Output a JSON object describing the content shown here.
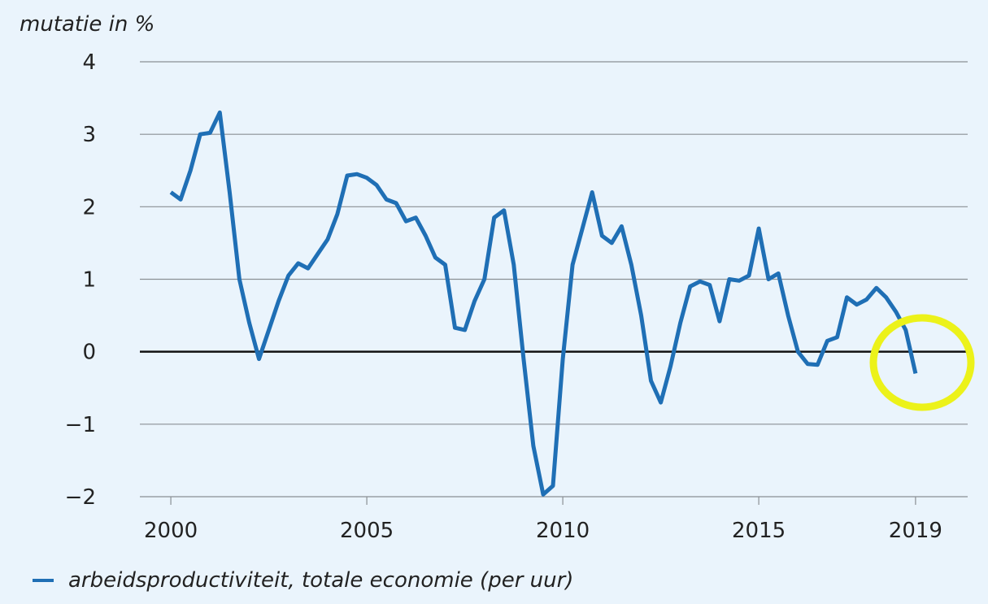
{
  "chart_data": {
    "type": "line",
    "ylabel": "mutatie in %",
    "x": [
      2000,
      2000.25,
      2000.5,
      2000.75,
      2001,
      2001.25,
      2001.5,
      2001.75,
      2002,
      2002.25,
      2002.5,
      2002.75,
      2003,
      2003.25,
      2003.5,
      2003.75,
      2004,
      2004.25,
      2004.5,
      2004.75,
      2005,
      2005.25,
      2005.5,
      2005.75,
      2006,
      2006.25,
      2006.5,
      2006.75,
      2007,
      2007.25,
      2007.5,
      2007.75,
      2008,
      2008.25,
      2008.5,
      2008.75,
      2009,
      2009.25,
      2009.5,
      2009.75,
      2010,
      2010.25,
      2010.5,
      2010.75,
      2011,
      2011.25,
      2011.5,
      2011.75,
      2012,
      2012.25,
      2012.5,
      2012.75,
      2013,
      2013.25,
      2013.5,
      2013.75,
      2014,
      2014.25,
      2014.5,
      2014.75,
      2015,
      2015.25,
      2015.5,
      2015.75,
      2016,
      2016.25,
      2016.5,
      2016.75,
      2017,
      2017.25,
      2017.5,
      2017.75,
      2018,
      2018.25,
      2018.5,
      2018.75,
      2019
    ],
    "series": [
      {
        "name": "arbeidsproductiviteit, totale economie (per uur)",
        "color": "#1f6fb5",
        "values": [
          2.2,
          2.1,
          2.5,
          3.0,
          3.02,
          3.3,
          2.2,
          1.0,
          0.4,
          -0.1,
          0.3,
          0.7,
          1.05,
          1.22,
          1.15,
          1.35,
          1.55,
          1.9,
          2.43,
          2.45,
          2.4,
          2.3,
          2.1,
          2.05,
          1.8,
          1.85,
          1.6,
          1.3,
          1.2,
          0.33,
          0.3,
          0.7,
          1.0,
          1.85,
          1.95,
          1.2,
          -0.1,
          -1.3,
          -1.97,
          -1.85,
          -0.1,
          1.2,
          1.7,
          2.2,
          1.6,
          1.5,
          1.73,
          1.2,
          0.5,
          -0.4,
          -0.7,
          -0.2,
          0.4,
          0.9,
          0.97,
          0.92,
          0.42,
          1.0,
          0.98,
          1.05,
          1.7,
          1.0,
          1.08,
          0.5,
          0.0,
          -0.17,
          -0.18,
          0.15,
          0.2,
          0.75,
          0.65,
          0.72,
          0.88,
          0.75,
          0.55,
          0.3,
          -0.3
        ]
      }
    ],
    "xlim": [
      1999.21,
      2020.33
    ],
    "xticks": [
      2000,
      2005,
      2010,
      2015,
      2019
    ],
    "ylim": [
      -2,
      4
    ],
    "yticks": [
      {
        "value": -2,
        "label": "−2"
      },
      {
        "value": -1,
        "label": "−1"
      },
      0,
      1,
      2,
      3,
      4
    ],
    "grid": true,
    "legend": "bottom-left"
  }
}
